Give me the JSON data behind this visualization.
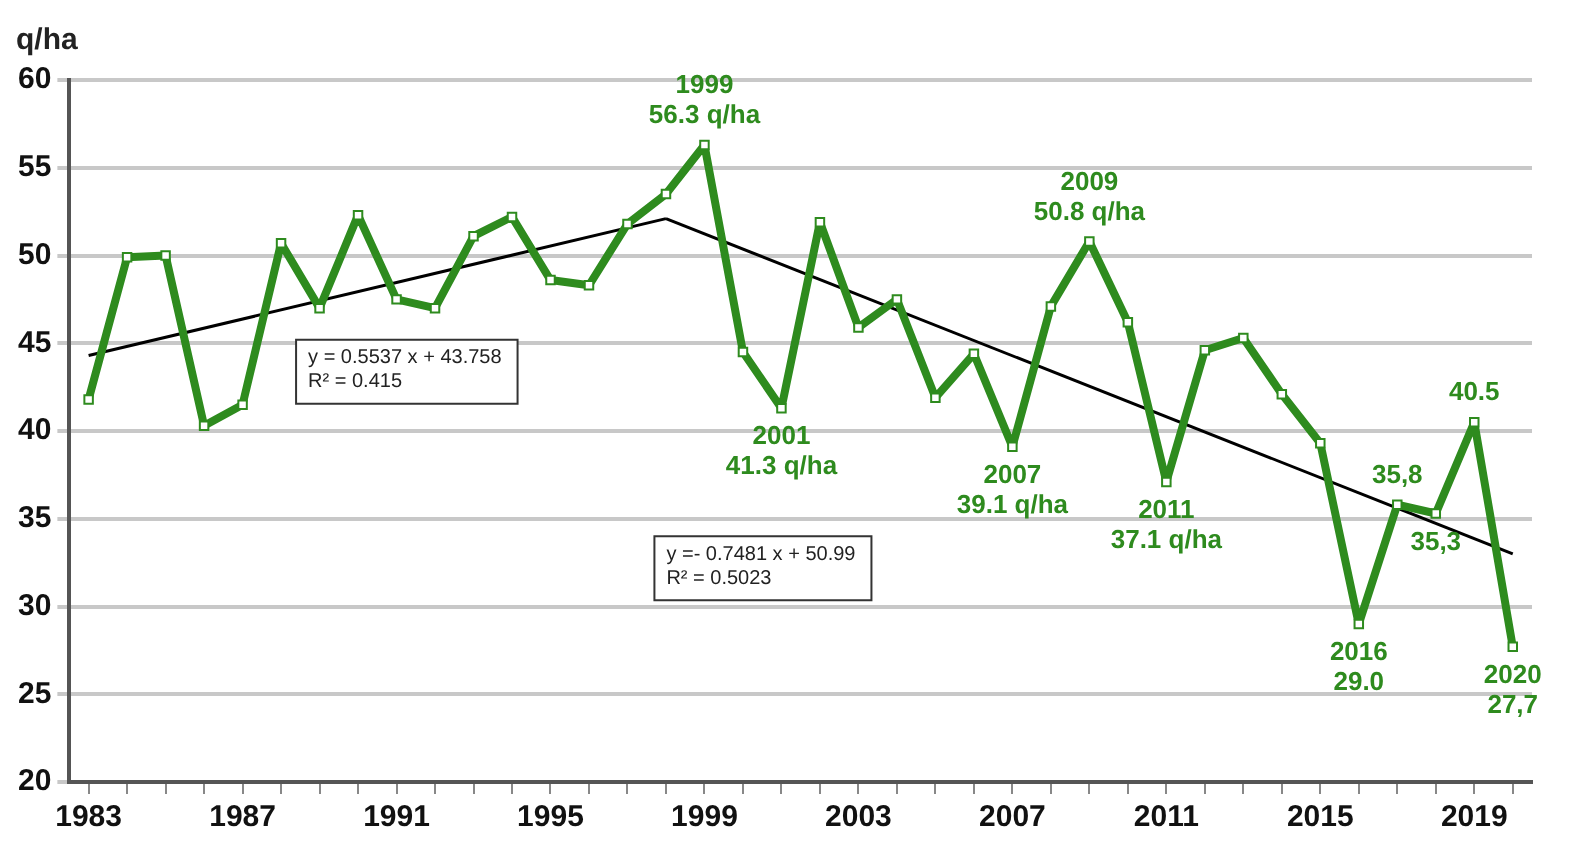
{
  "chart_data": {
    "type": "line",
    "ylabel": "q/ha",
    "x": [
      1983,
      1984,
      1985,
      1986,
      1987,
      1988,
      1989,
      1990,
      1991,
      1992,
      1993,
      1994,
      1995,
      1996,
      1997,
      1998,
      1999,
      2000,
      2001,
      2002,
      2003,
      2004,
      2005,
      2006,
      2007,
      2008,
      2009,
      2010,
      2011,
      2012,
      2013,
      2014,
      2015,
      2016,
      2017,
      2018,
      2019,
      2020
    ],
    "series": [
      {
        "color": "#2e8b1e",
        "values": [
          41.8,
          49.9,
          50.0,
          40.3,
          41.5,
          50.7,
          47.0,
          52.3,
          47.5,
          47.0,
          51.1,
          52.2,
          48.6,
          48.3,
          51.8,
          53.5,
          56.3,
          44.5,
          41.3,
          51.9,
          45.9,
          47.5,
          41.9,
          44.4,
          39.1,
          47.1,
          50.8,
          46.2,
          37.1,
          44.6,
          45.3,
          42.1,
          39.3,
          29.0,
          35.8,
          35.3,
          40.5,
          27.7
        ]
      },
      {
        "type": "line",
        "color": "#000000",
        "x": [
          1983,
          1998
        ],
        "values": [
          44.3,
          52.1
        ],
        "marker": "none"
      },
      {
        "type": "line",
        "color": "#000000",
        "x": [
          1998,
          2020
        ],
        "values": [
          52.1,
          33.0
        ],
        "marker": "none"
      }
    ],
    "xlim": [
      1982.5,
      2020.5
    ],
    "xticks": [
      1983,
      {
        "value": 1984,
        "label": null
      },
      {
        "value": 1985,
        "label": null
      },
      {
        "value": 1986,
        "label": null
      },
      1987,
      {
        "value": 1988,
        "label": null
      },
      {
        "value": 1989,
        "label": null
      },
      {
        "value": 1990,
        "label": null
      },
      1991,
      {
        "value": 1992,
        "label": null
      },
      {
        "value": 1993,
        "label": null
      },
      {
        "value": 1994,
        "label": null
      },
      1995,
      {
        "value": 1996,
        "label": null
      },
      {
        "value": 1997,
        "label": null
      },
      {
        "value": 1998,
        "label": null
      },
      1999,
      {
        "value": 2000,
        "label": null
      },
      {
        "value": 2001,
        "label": null
      },
      {
        "value": 2002,
        "label": null
      },
      2003,
      {
        "value": 2004,
        "label": null
      },
      {
        "value": 2005,
        "label": null
      },
      {
        "value": 2006,
        "label": null
      },
      2007,
      {
        "value": 2008,
        "label": null
      },
      {
        "value": 2009,
        "label": null
      },
      {
        "value": 2010,
        "label": null
      },
      2011,
      {
        "value": 2012,
        "label": null
      },
      {
        "value": 2013,
        "label": null
      },
      {
        "value": 2014,
        "label": null
      },
      2015,
      {
        "value": 2016,
        "label": null
      },
      {
        "value": 2017,
        "label": null
      },
      {
        "value": 2018,
        "label": null
      },
      2019,
      {
        "value": 2020,
        "label": null
      }
    ],
    "ylim": [
      20,
      60
    ],
    "yticks": [
      20,
      25,
      30,
      35,
      40,
      45,
      50,
      55,
      60
    ],
    "grid": "y",
    "legend": false,
    "marker": "square",
    "annotations": [
      {
        "text": "1999\n56.3 q/ha",
        "x": 1999,
        "y": 56.3
      },
      {
        "text": "2001\n41.3 q/ha",
        "x": 2001,
        "y": 41.3
      },
      {
        "text": "2007\n39.1 q/ha",
        "x": 2007,
        "y": 39.1
      },
      {
        "text": "2009\n50.8 q/ha",
        "x": 2009,
        "y": 50.8
      },
      {
        "text": "2011\n37.1 q/ha",
        "x": 2011,
        "y": 37.1
      },
      {
        "text": "2016\n29.0",
        "x": 2016,
        "y": 29.0
      },
      {
        "text": "35,8",
        "x": 2017,
        "y": 35.8
      },
      {
        "text": "35,3",
        "x": 2018,
        "y": 35.3
      },
      {
        "text": "40.5",
        "x": 2019,
        "y": 40.5
      },
      {
        "text": "2020\n27,7",
        "x": 2020,
        "y": 27.7
      },
      "y = 0.5537 x + 43.758\nR² = 0.415",
      "y =- 0.7481 x + 50.99\nR² = 0.5023"
    ]
  }
}
